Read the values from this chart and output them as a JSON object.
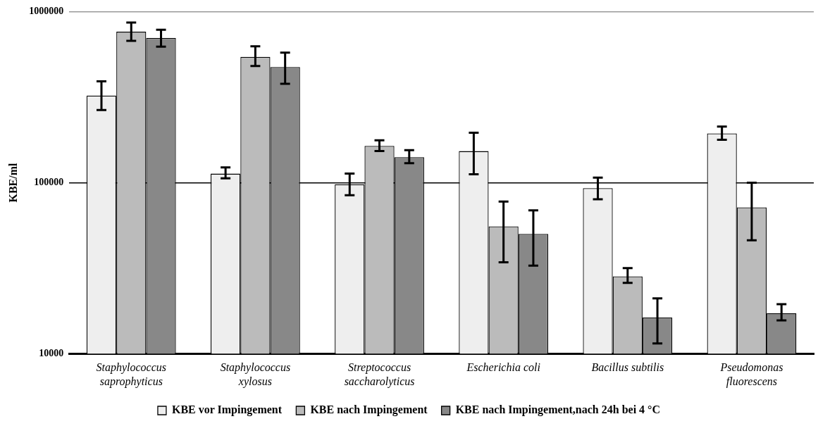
{
  "chart_data": {
    "type": "bar",
    "ylabel": "KBE/ml",
    "categories": [
      "Staphylococcus saprophyticus",
      "Staphylococcus xylosus",
      "Streptococcus saccharolyticus",
      "Escherichia coli",
      "Bacillus subtilis",
      "Pseudomonas fluorescens"
    ],
    "series": [
      {
        "name": "KBE vor Impingement",
        "color": "#eeeeee",
        "values": [
          323000,
          113000,
          98000,
          153000,
          93000,
          194000
        ],
        "errors": [
          [
            266000,
            391000
          ],
          [
            106000,
            123000
          ],
          [
            84500,
            113000
          ],
          [
            112000,
            196000
          ],
          [
            80000,
            107000
          ],
          [
            178000,
            213000
          ]
        ]
      },
      {
        "name": "KBE nach Impingement",
        "color": "#bbbbbb",
        "values": [
          762000,
          543000,
          164000,
          55600,
          28400,
          71800
        ],
        "errors": [
          [
            674000,
            863000
          ],
          [
            481000,
            627000
          ],
          [
            153000,
            177000
          ],
          [
            34300,
            77600
          ],
          [
            26000,
            31700
          ],
          [
            46100,
            100000
          ]
        ]
      },
      {
        "name": "KBE nach Impingement,nach 24h bei 4 °C",
        "color": "#888888",
        "values": [
          700000,
          474000,
          141000,
          50200,
          16300,
          17300
        ],
        "errors": [
          [
            623000,
            783000
          ],
          [
            378000,
            576000
          ],
          [
            130000,
            155000
          ],
          [
            32800,
            68900
          ],
          [
            11500,
            21100
          ],
          [
            15700,
            19500
          ]
        ]
      }
    ],
    "log": true,
    "ylim": [
      10000,
      1000000
    ],
    "yticks": [
      10000,
      100000,
      1000000
    ],
    "grid": "y",
    "legend": "bottom"
  }
}
